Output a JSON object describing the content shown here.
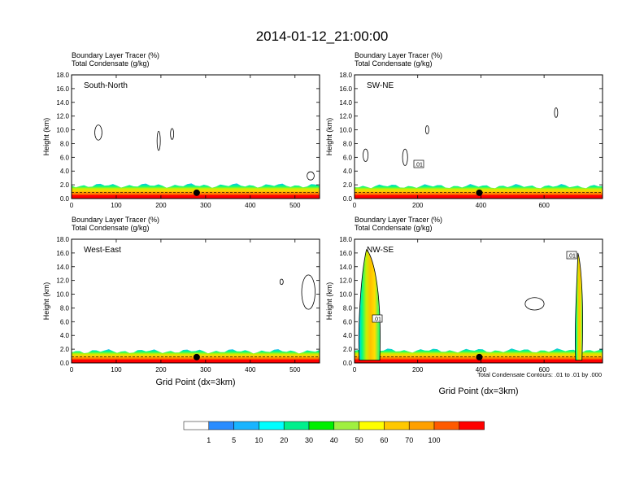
{
  "figure": {
    "title": "2014-01-12_21:00:00",
    "footnote": "Total Condensate Contours: .01 to .01 by .000"
  },
  "colorbar": {
    "labels": [
      "1",
      "5",
      "10",
      "20",
      "30",
      "40",
      "50",
      "60",
      "70",
      "100"
    ],
    "colors": [
      "#ffffff",
      "#2a8cff",
      "#19b4ff",
      "#00ffff",
      "#00f08c",
      "#00f000",
      "#a0f040",
      "#ffff00",
      "#ffc800",
      "#ffa000",
      "#ff5a00",
      "#ff0000"
    ]
  },
  "chart_data": [
    {
      "type": "contour",
      "panel_label": "South-North",
      "title_line1": "Boundary Layer Tracer   (%)",
      "title_line2": "Total Condensate   (g/kg)",
      "ylabel": "Height (km)",
      "xlabel": "",
      "xlim": [
        0,
        555
      ],
      "ylim": [
        0,
        18
      ],
      "x_ticks": [
        0,
        100,
        200,
        300,
        400,
        500
      ],
      "y_ticks": [
        "0.0",
        "2.0",
        "4.0",
        "6.0",
        "8.0",
        "10.0",
        "12.0",
        "14.0",
        "16.0",
        "18.0"
      ],
      "site_marker_x": 280,
      "boundary_layer_top_km": 1.9,
      "convective_columns": [],
      "contour_labels": []
    },
    {
      "type": "contour",
      "panel_label": "SW-NE",
      "title_line1": "Boundary Layer Tracer   (%)",
      "title_line2": "Total Condensate   (g/kg)",
      "ylabel": "Height (km)",
      "xlabel": "",
      "xlim": [
        0,
        785
      ],
      "ylim": [
        0,
        18
      ],
      "x_ticks": [
        0,
        200,
        400,
        600
      ],
      "y_ticks": [
        "0.0",
        "2.0",
        "4.0",
        "6.0",
        "8.0",
        "10.0",
        "12.0",
        "14.0",
        "16.0",
        "18.0"
      ],
      "site_marker_x": 395,
      "boundary_layer_top_km": 1.8,
      "convective_columns": [],
      "contour_labels": [
        ".01"
      ]
    },
    {
      "type": "contour",
      "panel_label": "West-East",
      "title_line1": "Boundary Layer Tracer   (%)",
      "title_line2": "Total Condensate   (g/kg)",
      "ylabel": "Height (km)",
      "xlabel": "Grid Point (dx=3km)",
      "xlim": [
        0,
        555
      ],
      "ylim": [
        0,
        18
      ],
      "x_ticks": [
        0,
        100,
        200,
        300,
        400,
        500
      ],
      "y_ticks": [
        "0.0",
        "2.0",
        "4.0",
        "6.0",
        "8.0",
        "10.0",
        "12.0",
        "14.0",
        "16.0",
        "18.0"
      ],
      "site_marker_x": 280,
      "boundary_layer_top_km": 1.7,
      "convective_columns": [],
      "contour_labels": []
    },
    {
      "type": "contour",
      "panel_label": "NW-SE",
      "title_line1": "Boundary Layer Tracer   (%)",
      "title_line2": "Total Condensate   (g/kg)",
      "ylabel": "Height (km)",
      "xlabel": "Grid Point (dx=3km)",
      "xlim": [
        0,
        785
      ],
      "ylim": [
        0,
        18
      ],
      "x_ticks": [
        0,
        200,
        400,
        600
      ],
      "y_ticks": [
        "0.0",
        "2.0",
        "4.0",
        "6.0",
        "8.0",
        "10.0",
        "12.0",
        "14.0",
        "16.0",
        "18.0"
      ],
      "site_marker_x": 395,
      "boundary_layer_top_km": 1.8,
      "convective_columns": [
        {
          "x_from": 15,
          "x_to": 80,
          "top_km": 16.5
        },
        {
          "x_from": 700,
          "x_to": 720,
          "top_km": 16.0
        }
      ],
      "contour_labels": [
        ".01",
        ".01"
      ]
    }
  ]
}
